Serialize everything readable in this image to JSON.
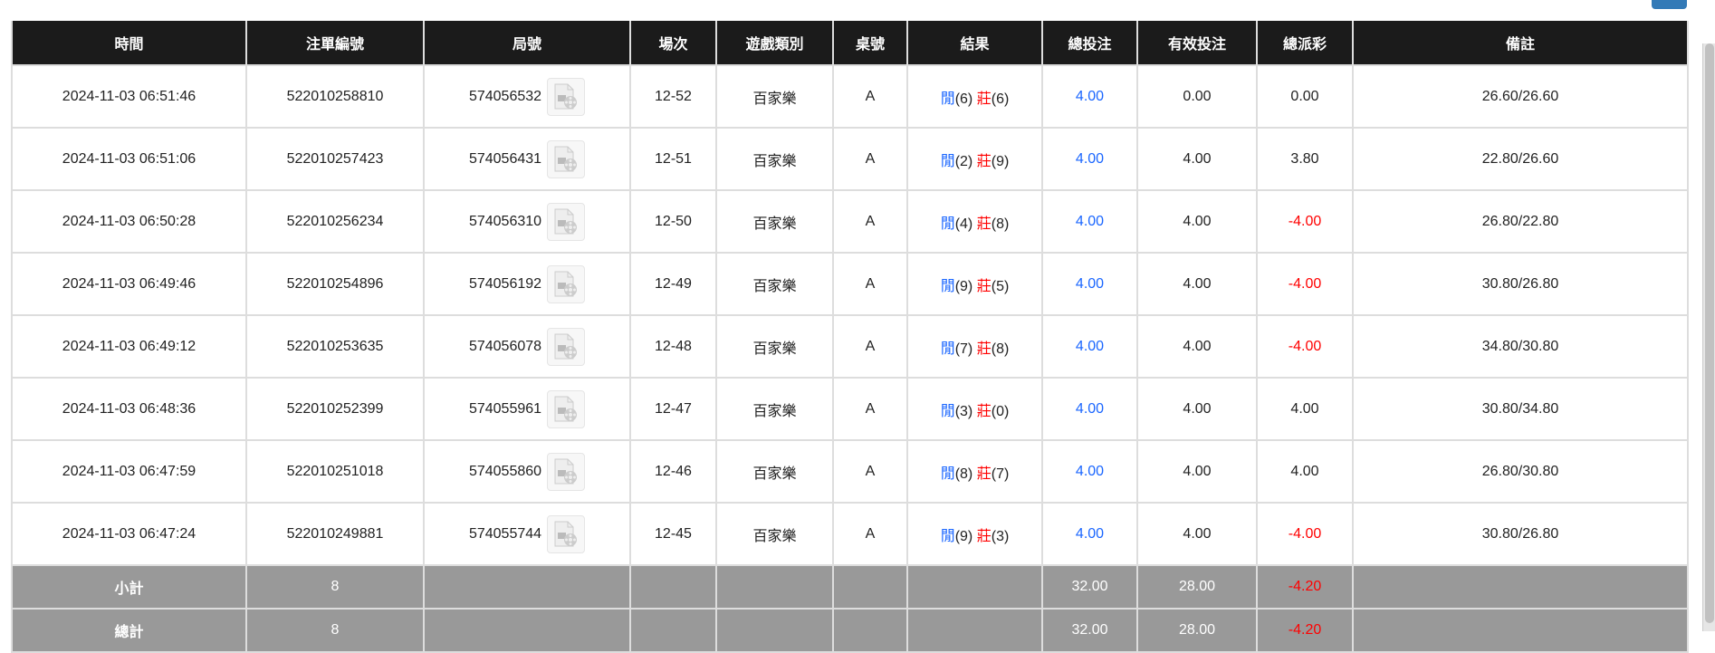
{
  "headers": [
    "時間",
    "注單編號",
    "局號",
    "場次",
    "遊戲類別",
    "桌號",
    "結果",
    "總投注",
    "有效投注",
    "總派彩",
    "備註"
  ],
  "rows": [
    {
      "time": "2024-11-03 06:51:46",
      "bet_id": "522010258810",
      "round": "574056532",
      "shoe": "12-52",
      "game": "百家樂",
      "table": "A",
      "player_label": "閒",
      "player": "(6)",
      "banker_label": "莊",
      "banker": "(6)",
      "total_bet": "4.00",
      "valid_bet": "0.00",
      "payout": "0.00",
      "payout_negative": false,
      "note": "26.60/26.60"
    },
    {
      "time": "2024-11-03 06:51:06",
      "bet_id": "522010257423",
      "round": "574056431",
      "shoe": "12-51",
      "game": "百家樂",
      "table": "A",
      "player_label": "閒",
      "player": "(2)",
      "banker_label": "莊",
      "banker": "(9)",
      "total_bet": "4.00",
      "valid_bet": "4.00",
      "payout": "3.80",
      "payout_negative": false,
      "note": "22.80/26.60"
    },
    {
      "time": "2024-11-03 06:50:28",
      "bet_id": "522010256234",
      "round": "574056310",
      "shoe": "12-50",
      "game": "百家樂",
      "table": "A",
      "player_label": "閒",
      "player": "(4)",
      "banker_label": "莊",
      "banker": "(8)",
      "total_bet": "4.00",
      "valid_bet": "4.00",
      "payout": "-4.00",
      "payout_negative": true,
      "note": "26.80/22.80"
    },
    {
      "time": "2024-11-03 06:49:46",
      "bet_id": "522010254896",
      "round": "574056192",
      "shoe": "12-49",
      "game": "百家樂",
      "table": "A",
      "player_label": "閒",
      "player": "(9)",
      "banker_label": "莊",
      "banker": "(5)",
      "total_bet": "4.00",
      "valid_bet": "4.00",
      "payout": "-4.00",
      "payout_negative": true,
      "note": "30.80/26.80"
    },
    {
      "time": "2024-11-03 06:49:12",
      "bet_id": "522010253635",
      "round": "574056078",
      "shoe": "12-48",
      "game": "百家樂",
      "table": "A",
      "player_label": "閒",
      "player": "(7)",
      "banker_label": "莊",
      "banker": "(8)",
      "total_bet": "4.00",
      "valid_bet": "4.00",
      "payout": "-4.00",
      "payout_negative": true,
      "note": "34.80/30.80"
    },
    {
      "time": "2024-11-03 06:48:36",
      "bet_id": "522010252399",
      "round": "574055961",
      "shoe": "12-47",
      "game": "百家樂",
      "table": "A",
      "player_label": "閒",
      "player": "(3)",
      "banker_label": "莊",
      "banker": "(0)",
      "total_bet": "4.00",
      "valid_bet": "4.00",
      "payout": "4.00",
      "payout_negative": false,
      "note": "30.80/34.80"
    },
    {
      "time": "2024-11-03 06:47:59",
      "bet_id": "522010251018",
      "round": "574055860",
      "shoe": "12-46",
      "game": "百家樂",
      "table": "A",
      "player_label": "閒",
      "player": "(8)",
      "banker_label": "莊",
      "banker": "(7)",
      "total_bet": "4.00",
      "valid_bet": "4.00",
      "payout": "4.00",
      "payout_negative": false,
      "note": "26.80/30.80"
    },
    {
      "time": "2024-11-03 06:47:24",
      "bet_id": "522010249881",
      "round": "574055744",
      "shoe": "12-45",
      "game": "百家樂",
      "table": "A",
      "player_label": "閒",
      "player": "(9)",
      "banker_label": "莊",
      "banker": "(3)",
      "total_bet": "4.00",
      "valid_bet": "4.00",
      "payout": "-4.00",
      "payout_negative": true,
      "note": "30.80/26.80"
    }
  ],
  "summary": [
    {
      "label": "小計",
      "count": "8",
      "total_bet": "32.00",
      "valid_bet": "28.00",
      "payout": "-4.20"
    },
    {
      "label": "總計",
      "count": "8",
      "total_bet": "32.00",
      "valid_bet": "28.00",
      "payout": "-4.20"
    }
  ],
  "colors": {
    "header_bg": "#1b1b1b",
    "player": "#1a66ff",
    "banker": "#ff0000",
    "negative": "#ff0000",
    "summary_bg": "#999999"
  }
}
